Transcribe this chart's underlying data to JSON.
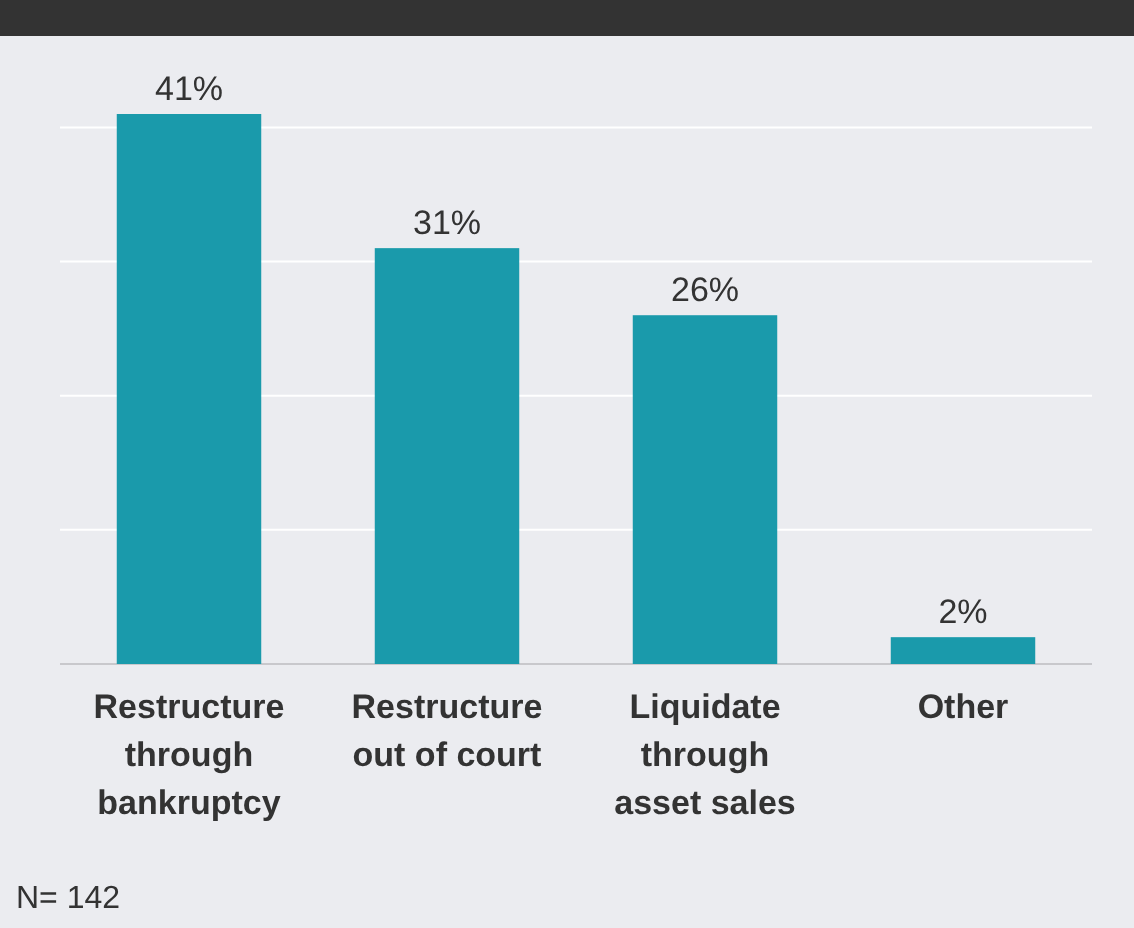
{
  "chart_data": {
    "type": "bar",
    "categories": [
      "Restructure through bankruptcy",
      "Restructure out of court",
      "Liquidate through asset sales",
      "Other"
    ],
    "values": [
      41,
      31,
      26,
      2
    ],
    "value_labels": [
      "41%",
      "31%",
      "26%",
      "2%"
    ],
    "color": "#1a9aab",
    "yticks": [
      {
        "value": 0,
        "label": null
      },
      {
        "value": 10,
        "label": null
      },
      {
        "value": 20,
        "label": null
      },
      {
        "value": 30,
        "label": null
      },
      {
        "value": 40,
        "label": null
      }
    ],
    "grid": "y",
    "tick_labels": "x",
    "annotations": [
      "N= 142"
    ]
  }
}
